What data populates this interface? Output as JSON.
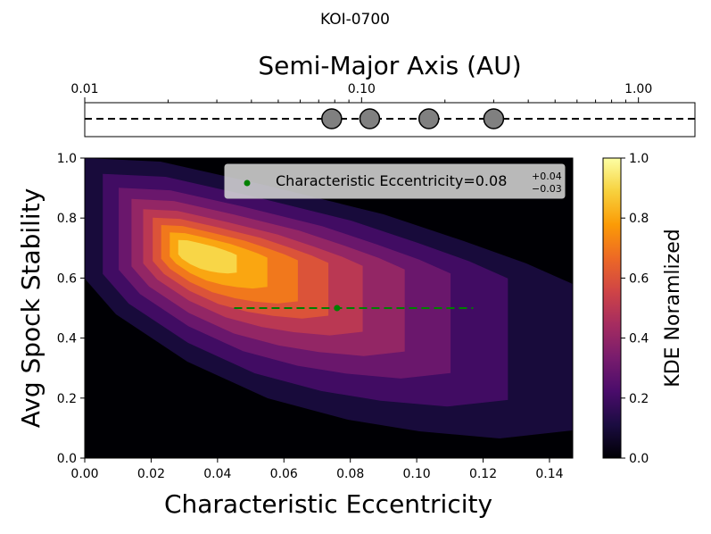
{
  "figure_title": "KOI-0700",
  "chart_data": [
    {
      "type": "scatter",
      "panel": "orbit-strip",
      "xlabel": "Semi-Major Axis (AU)",
      "xscale": "log",
      "xlim": [
        0.01,
        1.6
      ],
      "xticks": [
        {
          "value": 0.01,
          "label": "0.01"
        },
        {
          "value": 0.1,
          "label": "0.10"
        },
        {
          "value": 1.0,
          "label": "1.00"
        }
      ],
      "planets_au": [
        0.078,
        0.107,
        0.175,
        0.3
      ],
      "marker_color": "#808080",
      "line_style": "dashed"
    },
    {
      "type": "heatmap",
      "panel": "kde",
      "kind": "filled-contour KDE",
      "xlabel": "Characteristic Eccentricity",
      "ylabel": "Avg Spock Stability",
      "xlim": [
        0.0,
        0.147
      ],
      "ylim": [
        0.0,
        1.0
      ],
      "xticks": [
        "0.00",
        "0.02",
        "0.04",
        "0.06",
        "0.08",
        "0.10",
        "0.12",
        "0.14"
      ],
      "yticks": [
        "0.0",
        "0.2",
        "0.4",
        "0.6",
        "0.8",
        "1.0"
      ],
      "peak": {
        "x": 0.032,
        "y": 0.69
      },
      "contour_levels": [
        0.1,
        0.2,
        0.3,
        0.4,
        0.5,
        0.6,
        0.7,
        0.8,
        0.9
      ],
      "legend": {
        "label_main": "Characteristic Eccentricity=0.08",
        "sup": "+0.04",
        "sub": "−0.03",
        "placement": "top-right",
        "marker_color": "#008000"
      },
      "estimate": {
        "x": 0.076,
        "x_low": 0.045,
        "x_high": 0.117,
        "y": 0.5,
        "color": "#008000"
      }
    },
    {
      "type": "colorbar",
      "label": "KDE Noramlized",
      "range": [
        0.0,
        1.0
      ],
      "ticks": [
        "0.0",
        "0.2",
        "0.4",
        "0.6",
        "0.8",
        "1.0"
      ],
      "colormap": "inferno",
      "colors": [
        "#000004",
        "#1b0c41",
        "#4a0c6b",
        "#781c6d",
        "#a52c60",
        "#cf4446",
        "#ed6925",
        "#fb9b06",
        "#f7d13d",
        "#fcffa4"
      ]
    }
  ]
}
